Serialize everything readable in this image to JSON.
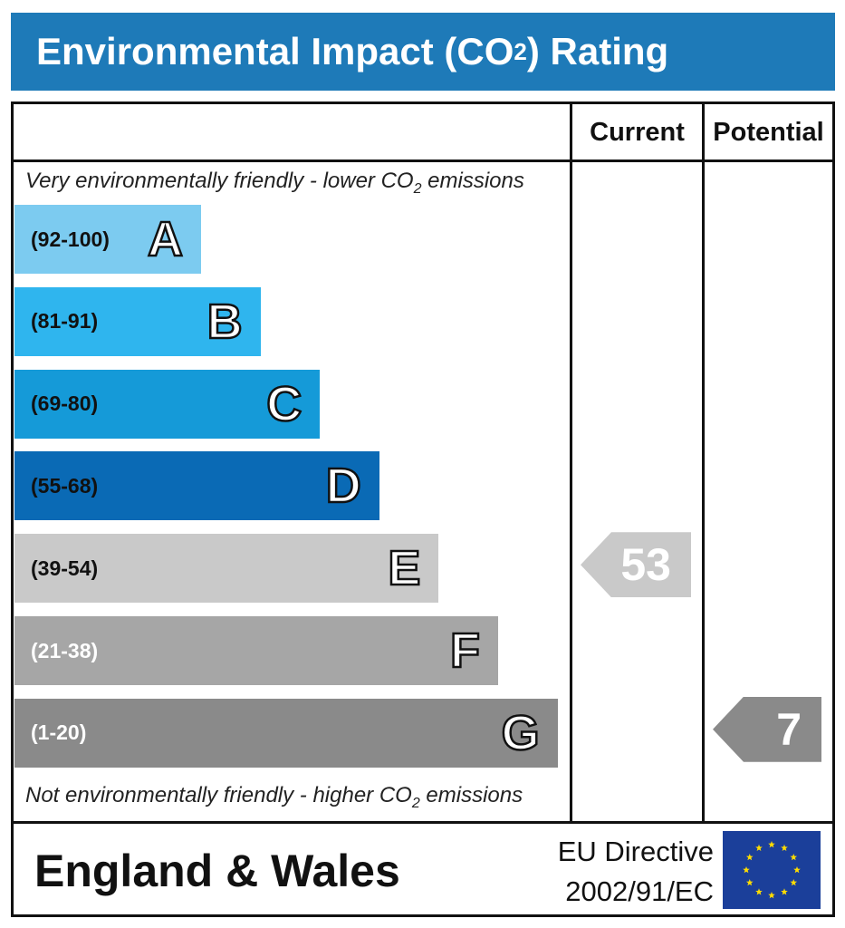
{
  "title": {
    "main": "Environmental Impact (CO",
    "sub": "2",
    "rest": ") Rating"
  },
  "columns": {
    "current": "Current",
    "potential": "Potential"
  },
  "notes": {
    "top": {
      "pre": "Very environmentally friendly - lower CO",
      "sub": "2",
      "post": " emissions"
    },
    "bottom": {
      "pre": "Not environmentally friendly - higher CO",
      "sub": "2",
      "post": " emissions"
    }
  },
  "footer": {
    "region": "England & Wales",
    "directive_line1": "EU Directive",
    "directive_line2": "2002/91/EC",
    "flag_icon": "eu-flag-icon"
  },
  "chart_data": {
    "type": "bar",
    "categories": [
      "A",
      "B",
      "C",
      "D",
      "E",
      "F",
      "G"
    ],
    "bands": [
      {
        "letter": "A",
        "range": "(92-100)",
        "min": 92,
        "max": 100,
        "color": "#7ccbf0",
        "range_color": "#111111"
      },
      {
        "letter": "B",
        "range": "(81-91)",
        "min": 81,
        "max": 91,
        "color": "#2fb5ee",
        "range_color": "#111111"
      },
      {
        "letter": "C",
        "range": "(69-80)",
        "min": 69,
        "max": 80,
        "color": "#159ad8",
        "range_color": "#111111"
      },
      {
        "letter": "D",
        "range": "(55-68)",
        "min": 55,
        "max": 68,
        "color": "#0a6ab5",
        "range_color": "#111111"
      },
      {
        "letter": "E",
        "range": "(39-54)",
        "min": 39,
        "max": 54,
        "color": "#c9c9c9",
        "range_color": "#111111"
      },
      {
        "letter": "F",
        "range": "(21-38)",
        "min": 21,
        "max": 38,
        "color": "#a6a6a6",
        "range_color": "#ffffff"
      },
      {
        "letter": "G",
        "range": "(1-20)",
        "min": 1,
        "max": 20,
        "color": "#8a8a8a",
        "range_color": "#ffffff"
      }
    ],
    "current": {
      "value": 53,
      "band": "E",
      "color": "#c9c9c9"
    },
    "potential": {
      "value": 7,
      "band": "G",
      "color": "#8a8a8a"
    }
  }
}
